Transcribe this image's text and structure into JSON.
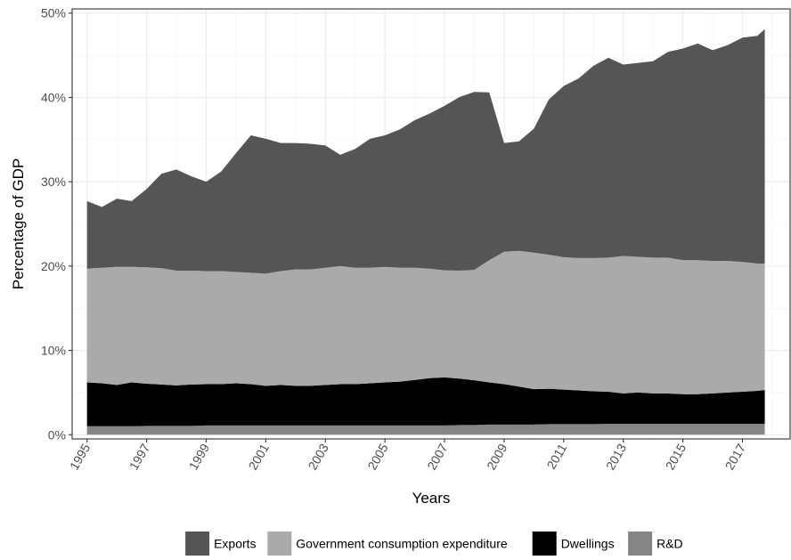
{
  "chart_data": {
    "type": "area",
    "stacked": true,
    "title": "",
    "xlabel": "Years",
    "ylabel": "Percentage of GDP",
    "xlim": [
      1994.5,
      2018.6
    ],
    "ylim": [
      -0.5,
      50.5
    ],
    "y_ticks": [
      0,
      10,
      20,
      30,
      40,
      50
    ],
    "y_tick_labels": [
      "0%",
      "10%",
      "20%",
      "30%",
      "40%",
      "50%"
    ],
    "x_ticks": [
      1995,
      1997,
      1999,
      2001,
      2003,
      2005,
      2007,
      2009,
      2011,
      2013,
      2015,
      2017
    ],
    "x_tick_labels": [
      "1995",
      "1997",
      "1999",
      "2001",
      "2003",
      "2005",
      "2007",
      "2009",
      "2011",
      "2013",
      "2015",
      "2017"
    ],
    "grid": true,
    "legend_position": "bottom",
    "x": [
      1995.0,
      1995.5,
      1996.0,
      1996.5,
      1997.0,
      1997.5,
      1998.0,
      1998.5,
      1999.0,
      1999.5,
      2000.0,
      2000.5,
      2001.0,
      2001.5,
      2002.0,
      2002.5,
      2003.0,
      2003.5,
      2004.0,
      2004.5,
      2005.0,
      2005.5,
      2006.0,
      2006.5,
      2007.0,
      2007.5,
      2008.0,
      2008.5,
      2009.0,
      2009.5,
      2010.0,
      2010.5,
      2011.0,
      2011.5,
      2012.0,
      2012.5,
      2013.0,
      2013.5,
      2014.0,
      2014.5,
      2015.0,
      2015.5,
      2016.0,
      2016.5,
      2017.0,
      2017.5,
      2017.75
    ],
    "series": [
      {
        "name": "R&D",
        "color": "#858585",
        "values": [
          1.0,
          1.0,
          1.0,
          1.0,
          1.05,
          1.05,
          1.05,
          1.05,
          1.1,
          1.1,
          1.1,
          1.1,
          1.1,
          1.1,
          1.1,
          1.1,
          1.1,
          1.1,
          1.1,
          1.1,
          1.1,
          1.1,
          1.1,
          1.1,
          1.1,
          1.15,
          1.15,
          1.2,
          1.2,
          1.2,
          1.2,
          1.25,
          1.25,
          1.25,
          1.25,
          1.3,
          1.3,
          1.3,
          1.3,
          1.3,
          1.3,
          1.3,
          1.3,
          1.3,
          1.3,
          1.3,
          1.3
        ]
      },
      {
        "name": "Dwellings",
        "color": "#000000",
        "values": [
          5.2,
          5.1,
          4.9,
          5.2,
          5.0,
          4.9,
          4.8,
          4.9,
          4.9,
          4.9,
          5.0,
          4.9,
          4.7,
          4.8,
          4.7,
          4.7,
          4.8,
          4.9,
          4.9,
          5.0,
          5.1,
          5.2,
          5.4,
          5.6,
          5.7,
          5.5,
          5.3,
          5.0,
          4.8,
          4.5,
          4.2,
          4.2,
          4.1,
          4.0,
          3.9,
          3.8,
          3.6,
          3.7,
          3.6,
          3.6,
          3.5,
          3.5,
          3.6,
          3.7,
          3.8,
          3.9,
          4.0
        ]
      },
      {
        "name": "Government consumption expenditure",
        "color": "#aaaaaa",
        "values": [
          13.5,
          13.7,
          14.0,
          13.7,
          13.8,
          13.8,
          13.6,
          13.5,
          13.4,
          13.4,
          13.2,
          13.2,
          13.3,
          13.5,
          13.8,
          13.8,
          13.9,
          14.0,
          13.8,
          13.7,
          13.7,
          13.5,
          13.3,
          13.0,
          12.7,
          12.8,
          13.1,
          14.5,
          15.7,
          16.1,
          16.2,
          15.9,
          15.7,
          15.7,
          15.8,
          15.9,
          16.3,
          16.1,
          16.1,
          16.1,
          15.9,
          15.9,
          15.7,
          15.6,
          15.4,
          15.1,
          15.0
        ]
      },
      {
        "name": "Exports",
        "color": "#555555",
        "values": [
          8.0,
          7.2,
          8.1,
          7.8,
          9.3,
          11.2,
          12.0,
          11.2,
          10.6,
          11.8,
          14.1,
          16.3,
          16.0,
          15.2,
          15.0,
          14.9,
          14.5,
          13.2,
          14.1,
          15.3,
          15.6,
          16.4,
          17.5,
          18.4,
          19.5,
          20.6,
          21.1,
          19.9,
          12.9,
          13.0,
          14.7,
          18.4,
          20.3,
          21.3,
          22.8,
          23.7,
          22.7,
          23.0,
          23.3,
          24.4,
          25.1,
          25.7,
          25.0,
          25.6,
          26.6,
          27.0,
          27.8
        ]
      }
    ],
    "legend_order": [
      "Exports",
      "Government consumption expenditure",
      "Dwellings",
      "R&D"
    ]
  }
}
